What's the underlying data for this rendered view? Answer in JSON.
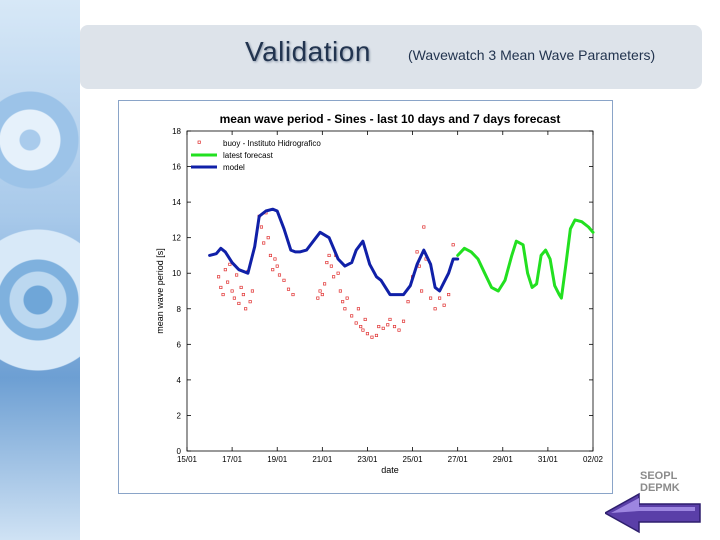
{
  "header": {
    "title": "Validation",
    "subtitle": "(Wavewatch 3 Mean Wave Parameters)"
  },
  "logo": {
    "line1": "SEOPL",
    "line2": "DEPMK"
  },
  "colors": {
    "buoy": "#e03030",
    "forecast": "#22e020",
    "model": "#1020a8",
    "accent": "#22344f"
  },
  "chart_data": {
    "type": "line",
    "title": "mean wave period - Sines - last 10 days and 7 days forecast",
    "xlabel": "date",
    "ylabel": "mean wave period [s]",
    "xlim": [
      0,
      18
    ],
    "ylim": [
      0,
      18
    ],
    "yticks": [
      0,
      2,
      4,
      6,
      8,
      10,
      12,
      14,
      16,
      18
    ],
    "xticks": [
      0,
      2,
      4,
      6,
      8,
      10,
      12,
      14,
      16,
      18
    ],
    "xtick_labels": [
      "15/01",
      "17/01",
      "19/01",
      "21/01",
      "23/01",
      "25/01",
      "27/01",
      "29/01",
      "31/01",
      "02/02"
    ],
    "legend": [
      {
        "key": "buoy",
        "label": "buoy - Instituto Hidrografico"
      },
      {
        "key": "forecast",
        "label": "latest forecast"
      },
      {
        "key": "model",
        "label": "model"
      }
    ],
    "series": [
      {
        "name": "model",
        "x": [
          1.0,
          1.3,
          1.5,
          1.7,
          2.0,
          2.3,
          2.7,
          3.0,
          3.2,
          3.5,
          3.8,
          4.0,
          4.3,
          4.6,
          4.8,
          5.0,
          5.3,
          5.6,
          5.9,
          6.3,
          6.7,
          7.0,
          7.3,
          7.5,
          7.8,
          8.1,
          8.4,
          8.6,
          8.8,
          9.0,
          9.3,
          9.6,
          9.9,
          10.2,
          10.5,
          10.8,
          11.0,
          11.2,
          11.4,
          11.6,
          11.8,
          12.0
        ],
        "y": [
          11.0,
          11.1,
          11.4,
          11.2,
          10.6,
          10.2,
          10.0,
          11.5,
          13.2,
          13.5,
          13.6,
          13.5,
          12.5,
          11.3,
          11.2,
          11.2,
          11.3,
          11.8,
          12.3,
          12.0,
          10.8,
          10.4,
          10.6,
          11.3,
          11.8,
          10.5,
          9.8,
          9.6,
          9.2,
          8.8,
          8.8,
          8.8,
          9.3,
          10.5,
          11.3,
          10.5,
          9.2,
          9.0,
          9.5,
          10.0,
          10.8,
          10.8
        ]
      },
      {
        "name": "latest forecast",
        "x": [
          12.0,
          12.3,
          12.6,
          12.9,
          13.2,
          13.5,
          13.8,
          14.1,
          14.4,
          14.6,
          14.9,
          15.1,
          15.3,
          15.5,
          15.7,
          15.9,
          16.1,
          16.3,
          16.5,
          16.6,
          16.8,
          17.0,
          17.2,
          17.5,
          17.8,
          18.0
        ],
        "y": [
          11.0,
          11.4,
          11.2,
          10.8,
          10.0,
          9.2,
          9.0,
          9.6,
          11.0,
          11.8,
          11.6,
          10.0,
          9.2,
          9.4,
          11.0,
          11.3,
          10.8,
          9.3,
          8.8,
          8.6,
          10.5,
          12.5,
          13.0,
          12.9,
          12.6,
          12.3
        ]
      }
    ],
    "buoy_points": [
      [
        1.4,
        9.8
      ],
      [
        1.5,
        9.2
      ],
      [
        1.6,
        8.8
      ],
      [
        1.7,
        10.2
      ],
      [
        1.8,
        9.5
      ],
      [
        1.9,
        10.5
      ],
      [
        2.0,
        9.0
      ],
      [
        2.1,
        8.6
      ],
      [
        2.2,
        9.9
      ],
      [
        2.3,
        8.3
      ],
      [
        2.4,
        9.2
      ],
      [
        2.5,
        8.8
      ],
      [
        2.6,
        8.0
      ],
      [
        2.7,
        10.1
      ],
      [
        2.8,
        8.4
      ],
      [
        2.9,
        9.0
      ],
      [
        3.2,
        13.2
      ],
      [
        3.3,
        12.6
      ],
      [
        3.4,
        11.7
      ],
      [
        3.5,
        13.4
      ],
      [
        3.6,
        12.0
      ],
      [
        3.7,
        11.0
      ],
      [
        3.8,
        10.2
      ],
      [
        3.9,
        10.8
      ],
      [
        4.0,
        10.4
      ],
      [
        4.1,
        9.9
      ],
      [
        4.3,
        9.6
      ],
      [
        4.5,
        9.1
      ],
      [
        4.7,
        8.8
      ],
      [
        5.8,
        8.6
      ],
      [
        5.9,
        9.0
      ],
      [
        6.0,
        8.8
      ],
      [
        6.1,
        9.4
      ],
      [
        6.2,
        10.6
      ],
      [
        6.3,
        11.0
      ],
      [
        6.4,
        10.4
      ],
      [
        6.5,
        9.8
      ],
      [
        6.6,
        11.0
      ],
      [
        6.7,
        10.0
      ],
      [
        6.8,
        9.0
      ],
      [
        6.9,
        8.4
      ],
      [
        7.0,
        8.0
      ],
      [
        7.1,
        8.6
      ],
      [
        7.3,
        7.6
      ],
      [
        7.5,
        7.2
      ],
      [
        7.6,
        8.0
      ],
      [
        7.7,
        7.0
      ],
      [
        7.8,
        6.8
      ],
      [
        7.9,
        7.4
      ],
      [
        8.0,
        6.6
      ],
      [
        8.2,
        6.4
      ],
      [
        8.4,
        6.5
      ],
      [
        8.5,
        7.0
      ],
      [
        8.7,
        6.9
      ],
      [
        8.9,
        7.1
      ],
      [
        9.0,
        7.4
      ],
      [
        9.2,
        7.0
      ],
      [
        9.4,
        6.8
      ],
      [
        9.6,
        7.3
      ],
      [
        9.8,
        8.4
      ],
      [
        10.0,
        9.8
      ],
      [
        10.2,
        11.2
      ],
      [
        10.3,
        10.4
      ],
      [
        10.4,
        9.0
      ],
      [
        10.5,
        12.6
      ],
      [
        10.6,
        10.8
      ],
      [
        10.8,
        8.6
      ],
      [
        11.0,
        8.0
      ],
      [
        11.2,
        8.6
      ],
      [
        11.4,
        8.2
      ],
      [
        11.6,
        8.8
      ],
      [
        11.8,
        11.6
      ]
    ]
  }
}
